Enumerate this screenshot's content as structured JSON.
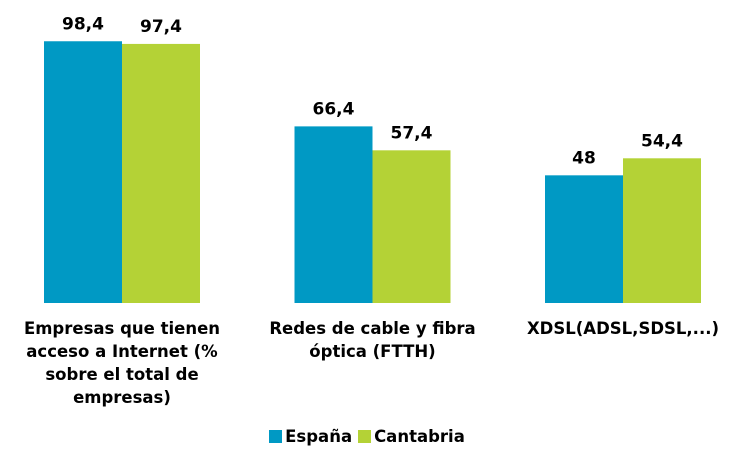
{
  "chart_data": {
    "type": "bar",
    "categories": [
      "Empresas que tienen acceso a Internet (% sobre el total de empresas)",
      "Redes de cable y fibra óptica (FTTH)",
      "XDSL(ADSL,SDSL,...)"
    ],
    "series": [
      {
        "name": "España",
        "color": "#0099c4",
        "values": [
          98.4,
          66.4,
          48
        ],
        "value_labels": [
          "98,4",
          "66,4",
          "48"
        ]
      },
      {
        "name": "Cantabria",
        "color": "#b4d236",
        "values": [
          97.4,
          57.4,
          54.4
        ],
        "value_labels": [
          "97,4",
          "57,4",
          "54,4"
        ]
      }
    ],
    "ylim": [
      0,
      100
    ]
  }
}
